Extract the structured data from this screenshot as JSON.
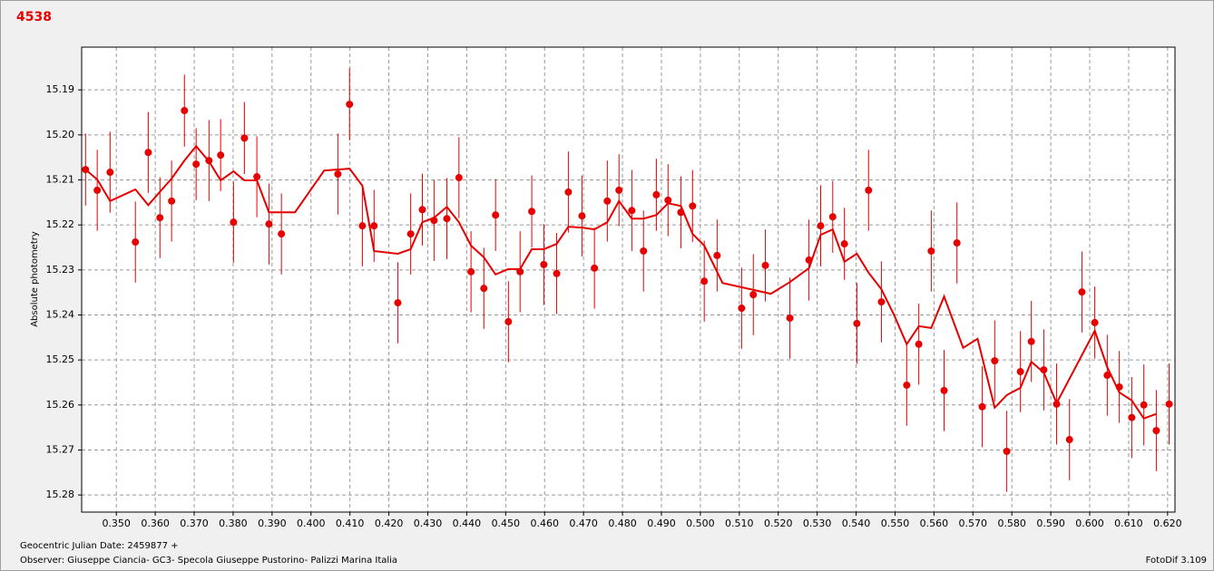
{
  "chart_data": {
    "type": "errorscatter",
    "title": "4538",
    "ylabel": "Absolute photometry",
    "xlabel": "Geocentric Julian Date: 2459877 +",
    "annotations": [
      "Observer: Giuseppe Ciancia- GC3- Specola Giuseppe Pustorino- Palizzi Marina Italia",
      "FotoDif 3.109"
    ],
    "color": "#e60000",
    "xlim": [
      0.3411,
      0.6219
    ],
    "ylim": [
      15.2838,
      15.1805
    ],
    "grid": true,
    "xticks": [
      {
        "value": 0.35,
        "label": "0.350"
      },
      {
        "value": 0.36,
        "label": "0.360"
      },
      {
        "value": 0.37,
        "label": "0.370"
      },
      {
        "value": 0.38,
        "label": "0.380"
      },
      {
        "value": 0.39,
        "label": "0.390"
      },
      {
        "value": 0.4,
        "label": "0.400"
      },
      {
        "value": 0.41,
        "label": "0.410"
      },
      {
        "value": 0.42,
        "label": "0.420"
      },
      {
        "value": 0.43,
        "label": "0.430"
      },
      {
        "value": 0.44,
        "label": "0.440"
      },
      {
        "value": 0.45,
        "label": "0.450"
      },
      {
        "value": 0.46,
        "label": "0.460"
      },
      {
        "value": 0.47,
        "label": "0.470"
      },
      {
        "value": 0.48,
        "label": "0.480"
      },
      {
        "value": 0.49,
        "label": "0.490"
      },
      {
        "value": 0.5,
        "label": "0.500"
      },
      {
        "value": 0.51,
        "label": "0.510"
      },
      {
        "value": 0.52,
        "label": "0.520"
      },
      {
        "value": 0.53,
        "label": "0.530"
      },
      {
        "value": 0.54,
        "label": "0.540"
      },
      {
        "value": 0.55,
        "label": "0.550"
      },
      {
        "value": 0.56,
        "label": "0.560"
      },
      {
        "value": 0.57,
        "label": "0.570"
      },
      {
        "value": 0.58,
        "label": "0.580"
      },
      {
        "value": 0.59,
        "label": "0.590"
      },
      {
        "value": 0.6,
        "label": "0.600"
      },
      {
        "value": 0.61,
        "label": "0.610"
      },
      {
        "value": 0.62,
        "label": "0.620"
      }
    ],
    "yticks": [
      15.19,
      {
        "value": 15.2,
        "label": "15.20"
      },
      15.21,
      15.22,
      15.23,
      15.24,
      15.25,
      15.26,
      15.27,
      15.28
    ],
    "points": {
      "x": [
        0.3421,
        0.3451,
        0.3484,
        0.3549,
        0.3582,
        0.3612,
        0.3642,
        0.3675,
        0.3705,
        0.3738,
        0.3768,
        0.3801,
        0.3829,
        0.3861,
        0.3892,
        0.3924,
        0.4069,
        0.4099,
        0.4132,
        0.4162,
        0.4223,
        0.4256,
        0.4286,
        0.4316,
        0.4349,
        0.438,
        0.4411,
        0.4444,
        0.4474,
        0.4507,
        0.4537,
        0.4567,
        0.4598,
        0.4631,
        0.4661,
        0.4696,
        0.4728,
        0.4761,
        0.4791,
        0.4824,
        0.4854,
        0.4887,
        0.4917,
        0.495,
        0.498,
        0.501,
        0.5043,
        0.5106,
        0.5136,
        0.5167,
        0.523,
        0.5279,
        0.5309,
        0.534,
        0.537,
        0.5402,
        0.5432,
        0.5465,
        0.553,
        0.5561,
        0.5593,
        0.5626,
        0.5659,
        0.5724,
        0.5756,
        0.5787,
        0.5822,
        0.585,
        0.5882,
        0.5915,
        0.5948,
        0.598,
        0.6013,
        0.6045,
        0.6076,
        0.6108,
        0.6139,
        0.6171,
        0.6204
      ],
      "y": [
        15.2077,
        15.2123,
        15.2083,
        15.2238,
        15.2039,
        15.2184,
        15.2147,
        15.1946,
        15.2065,
        15.2057,
        15.2045,
        15.2194,
        15.2007,
        15.2093,
        15.2198,
        15.222,
        15.2087,
        15.1932,
        15.2202,
        15.2202,
        15.2373,
        15.222,
        15.2166,
        15.219,
        15.2186,
        15.2095,
        15.2304,
        15.2341,
        15.2178,
        15.2415,
        15.2304,
        15.217,
        15.2288,
        15.2308,
        15.2127,
        15.218,
        15.2296,
        15.2147,
        15.2123,
        15.2168,
        15.2258,
        15.2133,
        15.2145,
        15.2172,
        15.2158,
        15.2325,
        15.2268,
        15.2385,
        15.2355,
        15.229,
        15.2407,
        15.2278,
        15.2202,
        15.2182,
        15.2242,
        15.2419,
        15.2123,
        15.2371,
        15.2556,
        15.2465,
        15.2258,
        15.2568,
        15.224,
        15.2604,
        15.2502,
        15.2703,
        15.2526,
        15.2459,
        15.2522,
        15.2598,
        15.2677,
        15.2349,
        15.2417,
        15.2534,
        15.256,
        15.2628,
        15.26,
        15.2657,
        15.2598
      ],
      "errors": [
        0.008,
        0.009,
        0.009,
        0.009,
        0.009,
        0.009,
        0.009,
        0.008,
        0.008,
        0.009,
        0.008,
        0.009,
        0.008,
        0.009,
        0.009,
        0.009,
        0.009,
        0.008,
        0.009,
        0.008,
        0.009,
        0.009,
        0.008,
        0.009,
        0.009,
        0.009,
        0.009,
        0.009,
        0.008,
        0.009,
        0.009,
        0.008,
        0.009,
        0.009,
        0.009,
        0.009,
        0.009,
        0.009,
        0.008,
        0.009,
        0.009,
        0.008,
        0.008,
        0.008,
        0.008,
        0.009,
        0.008,
        0.009,
        0.009,
        0.008,
        0.009,
        0.009,
        0.009,
        0.008,
        0.008,
        0.009,
        0.009,
        0.009,
        0.009,
        0.009,
        0.009,
        0.009,
        0.009,
        0.009,
        0.009,
        0.009,
        0.009,
        0.009,
        0.009,
        0.009,
        0.009,
        0.009,
        0.008,
        0.009,
        0.008,
        0.009,
        0.009,
        0.009,
        0.009
      ]
    },
    "line": {
      "x": [
        0.3421,
        0.3451,
        0.3484,
        0.3549,
        0.3582,
        0.3642,
        0.3675,
        0.3705,
        0.3738,
        0.3768,
        0.3801,
        0.3829,
        0.3861,
        0.3892,
        0.3924,
        0.3959,
        0.4034,
        0.4099,
        0.4132,
        0.4162,
        0.4223,
        0.4256,
        0.4286,
        0.4316,
        0.4349,
        0.438,
        0.4411,
        0.4444,
        0.4474,
        0.4507,
        0.4537,
        0.4567,
        0.4598,
        0.4631,
        0.4661,
        0.4696,
        0.4728,
        0.4761,
        0.4791,
        0.4824,
        0.4854,
        0.4887,
        0.4917,
        0.495,
        0.498,
        0.501,
        0.5057,
        0.5181,
        0.523,
        0.5279,
        0.5309,
        0.534,
        0.537,
        0.5402,
        0.5432,
        0.5465,
        0.5498,
        0.553,
        0.5561,
        0.5593,
        0.5626,
        0.5675,
        0.5712,
        0.5756,
        0.5787,
        0.5822,
        0.585,
        0.5882,
        0.5915,
        0.6013,
        0.6045,
        0.6076,
        0.6108,
        0.6139,
        0.6171
      ],
      "y": [
        15.2077,
        15.2099,
        15.2147,
        15.2121,
        15.2156,
        15.2097,
        15.2057,
        15.2025,
        15.2059,
        15.2101,
        15.2081,
        15.2101,
        15.2101,
        15.2172,
        15.2172,
        15.2172,
        15.2079,
        15.2075,
        15.2113,
        15.2258,
        15.2264,
        15.2254,
        15.2194,
        15.2184,
        15.216,
        15.2194,
        15.2246,
        15.2272,
        15.231,
        15.2298,
        15.2298,
        15.2254,
        15.2254,
        15.2242,
        15.2204,
        15.2206,
        15.221,
        15.2194,
        15.2147,
        15.2186,
        15.2186,
        15.2178,
        15.2152,
        15.2158,
        15.222,
        15.2246,
        15.2329,
        15.2353,
        15.2327,
        15.2296,
        15.2222,
        15.221,
        15.2282,
        15.2264,
        15.2306,
        15.2343,
        15.2401,
        15.2465,
        15.2425,
        15.2429,
        15.2359,
        15.2473,
        15.2453,
        15.2606,
        15.2578,
        15.2562,
        15.2504,
        15.2528,
        15.2596,
        15.2435,
        15.2516,
        15.2572,
        15.259,
        15.263,
        15.262
      ]
    }
  }
}
